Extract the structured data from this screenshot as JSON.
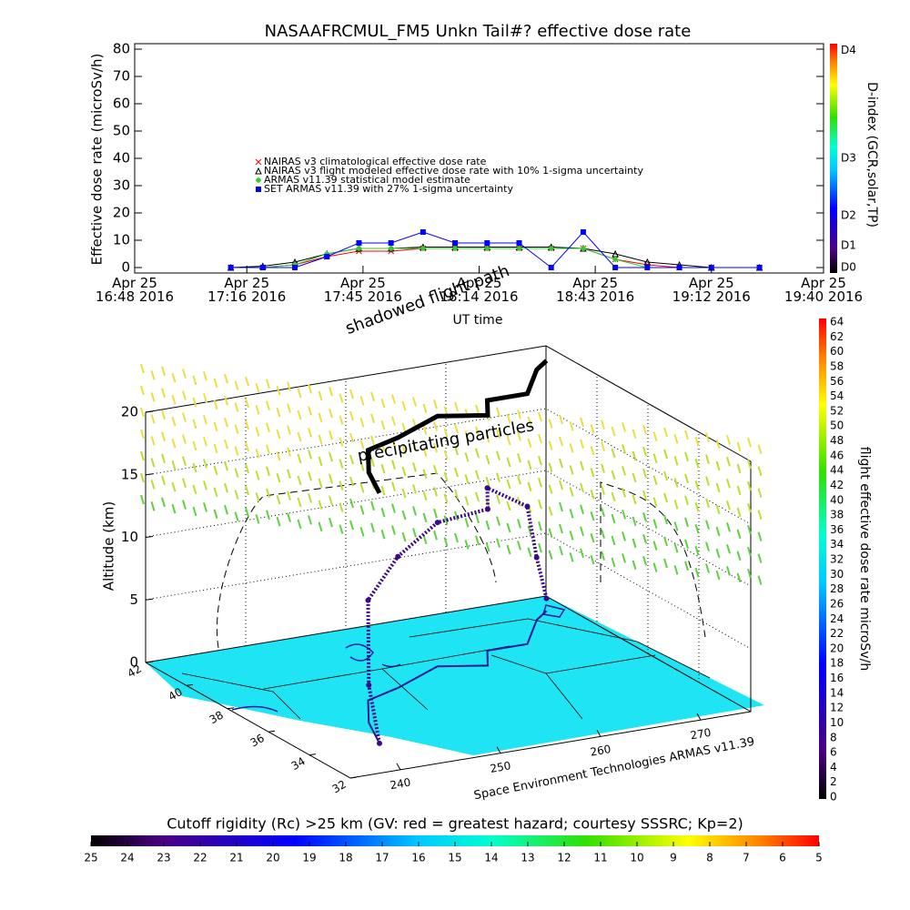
{
  "chart_data": [
    {
      "type": "line",
      "title": "NASAAFRCMUL_FM5 Unkn Tail#? effective dose rate",
      "xlabel": "UT time",
      "ylabel": "Effective dose rate (microSv/h)",
      "x": [
        "2016-04-25T17:12",
        "2016-04-25T17:20",
        "2016-04-25T17:28",
        "2016-04-25T17:36",
        "2016-04-25T17:44",
        "2016-04-25T17:52",
        "2016-04-25T18:00",
        "2016-04-25T18:08",
        "2016-04-25T18:16",
        "2016-04-25T18:24",
        "2016-04-25T18:32",
        "2016-04-25T18:40",
        "2016-04-25T18:48",
        "2016-04-25T18:56",
        "2016-04-25T19:04",
        "2016-04-25T19:12",
        "2016-04-25T19:24"
      ],
      "xlim": [
        "2016-04-25T16:48",
        "2016-04-25T19:40"
      ],
      "xticks": [
        {
          "value": "2016-04-25T16:48",
          "label": "Apr 25 16:48 2016"
        },
        {
          "value": "2016-04-25T17:16",
          "label": "Apr 25 17:16 2016"
        },
        {
          "value": "2016-04-25T17:45",
          "label": "Apr 25 17:45 2016"
        },
        {
          "value": "2016-04-25T18:14",
          "label": "Apr 25 18:14 2016"
        },
        {
          "value": "2016-04-25T18:43",
          "label": "Apr 25 18:43 2016"
        },
        {
          "value": "2016-04-25T19:12",
          "label": "Apr 25 19:12 2016"
        },
        {
          "value": "2016-04-25T19:40",
          "label": "Apr 25 19:40 2016"
        }
      ],
      "ylim": [
        -2,
        82
      ],
      "yticks": [
        0,
        10,
        20,
        30,
        40,
        50,
        60,
        70,
        80
      ],
      "series": [
        {
          "name": "NAIRAS v3 climatological effective dose rate",
          "color": "#ff0000",
          "marker": "x",
          "values": [
            0,
            0,
            1,
            4,
            6,
            6,
            7,
            7,
            7,
            7,
            7,
            7,
            3,
            1,
            0,
            0,
            0
          ]
        },
        {
          "name": "NAIRAS v3 flight modeled effective dose rate with 10% 1-sigma uncertainty",
          "color": "#000000",
          "marker": "triangle",
          "values": [
            0,
            0.5,
            2,
            5,
            7,
            7,
            7.5,
            7.5,
            7.5,
            7.5,
            7.5,
            7,
            5,
            2,
            1,
            0,
            0
          ]
        },
        {
          "name": "ARMAS v11.39 statistical model estimate",
          "color": "#33cc33",
          "marker": "asterisk",
          "values": [
            0,
            0,
            1,
            5,
            7,
            7,
            7,
            7,
            7,
            7,
            7,
            7,
            3,
            0,
            0,
            0,
            0
          ]
        },
        {
          "name": "SET ARMAS v11.39 with 27% 1-sigma uncertainty",
          "color": "#0000ff",
          "marker": "square",
          "values": [
            0,
            0,
            0,
            4,
            9,
            9,
            13,
            9,
            9,
            9,
            0,
            13,
            0,
            0,
            0,
            0,
            0
          ]
        }
      ],
      "colorbar": {
        "label": "D-index (GCR,solar,TP)",
        "ticks": [
          "D0",
          "D1",
          "D2",
          "D3",
          "D4"
        ]
      }
    },
    {
      "type": "scatter3d",
      "zlabel": "Altitude (km)",
      "xlim": [
        235,
        275
      ],
      "xticks": [
        240,
        250,
        260,
        270
      ],
      "ylim": [
        32,
        42
      ],
      "yticks": [
        32,
        34,
        36,
        38,
        40,
        42
      ],
      "zlim": [
        0,
        20
      ],
      "zticks": [
        0,
        5,
        10,
        15,
        20
      ],
      "annotations": [
        "shadowed flight path",
        "precipitating particles",
        "Space Environment Technologies ARMAS v11.39"
      ],
      "series": [
        {
          "color": "#3b0a8a",
          "lon": [
            242,
            244,
            247,
            251,
            257,
            261,
            263,
            267,
            271,
            273
          ],
          "lat": [
            34,
            35.5,
            37,
            37.5,
            38.5,
            38,
            39,
            39,
            40.5,
            41
          ],
          "values": [
            0,
            3,
            8,
            10.5,
            11.5,
            12.5,
            13,
            11,
            5,
            1
          ]
        }
      ],
      "colorbar": {
        "label": "flight effective dose rate microSv/h",
        "ticks": [
          0,
          2,
          4,
          6,
          8,
          10,
          12,
          14,
          16,
          18,
          20,
          22,
          24,
          26,
          28,
          30,
          32,
          34,
          36,
          38,
          40,
          42,
          44,
          46,
          48,
          50,
          52,
          54,
          56,
          58,
          60,
          62,
          64
        ],
        "lim": [
          0,
          64
        ]
      },
      "colorbar2": {
        "label": "Cutoff rigidity (Rc) >25 km (GV: red = greatest hazard; courtesy SSSRC; Kp=2)",
        "ticks": [
          25,
          24,
          23,
          22,
          21,
          20,
          19,
          18,
          17,
          16,
          15,
          14,
          13,
          12,
          11,
          10,
          9,
          8,
          7,
          6,
          5
        ],
        "lim": [
          25,
          5
        ]
      }
    }
  ]
}
